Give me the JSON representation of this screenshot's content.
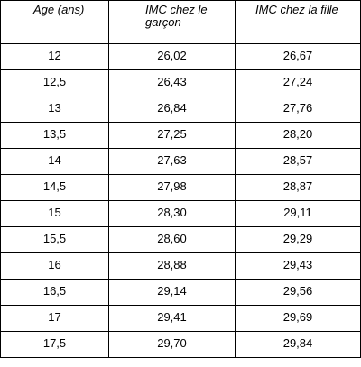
{
  "table": {
    "header": [
      "Age (ans)",
      "IMC chez le garçon",
      "IMC chez la fille"
    ],
    "rows": [
      [
        "12",
        "26,02",
        "26,67"
      ],
      [
        "12,5",
        "26,43",
        "27,24"
      ],
      [
        "13",
        "26,84",
        "27,76"
      ],
      [
        "13,5",
        "27,25",
        "28,20"
      ],
      [
        "14",
        "27,63",
        "28,57"
      ],
      [
        "14,5",
        "27,98",
        "28,87"
      ],
      [
        "15",
        "28,30",
        "29,11"
      ],
      [
        "15,5",
        "28,60",
        "29,29"
      ],
      [
        "16",
        "28,88",
        "29,43"
      ],
      [
        "16,5",
        "29,14",
        "29,56"
      ],
      [
        "17",
        "29,41",
        "29,69"
      ],
      [
        "17,5",
        "29,70",
        "29,84"
      ]
    ]
  }
}
